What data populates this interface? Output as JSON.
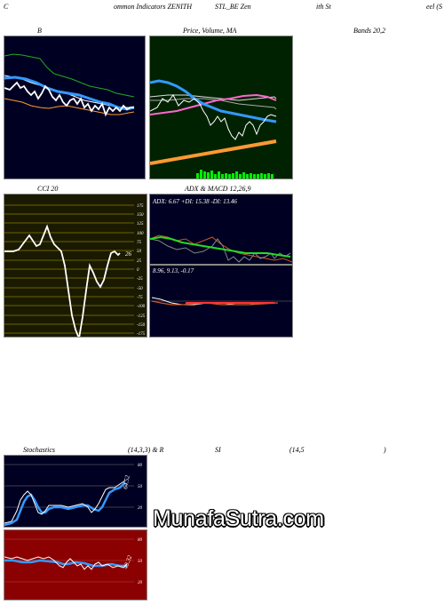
{
  "header": {
    "c": "C",
    "common": "ommon  Indicators ZENITH",
    "sym": "STL_BE  Zen",
    "ith": "ith St",
    "eel": "eel (S"
  },
  "row1": {
    "b_title": "B",
    "price_title": "Price,  Volume,  MA",
    "bands_title": "Bands 20,2"
  },
  "row2": {
    "cci_title": "CCI 20",
    "adx_title": "ADX  & MACD 12,26,9",
    "adx_values": "ADX: 6.67  +DI: 15.38  -DI: 13.46",
    "macd_values": "8.96,  9.13,  -0.17",
    "cci_value": "26",
    "cci_ticks": [
      "175",
      "150",
      "125",
      "100",
      "75",
      "50",
      "25",
      "0",
      "-25",
      "-50",
      "-75",
      "-100",
      "-125",
      "-150",
      "-175"
    ]
  },
  "row3": {
    "stoch_title": "Stochastics",
    "stoch_params": "(14,3,3) & R",
    "rsi_title": "SI",
    "rsi_params": "(14,5",
    "rsi_close": ")",
    "stoch_ticks": [
      "80",
      "50",
      "20"
    ],
    "stoch_value": "64.52",
    "rsi_ticks": [
      "80",
      "50",
      "20"
    ],
    "rsi_value": "48.32"
  },
  "watermark": "MunafaSutra.com",
  "colors": {
    "dark_navy": "#000022",
    "dark_green": "#002200",
    "dark_olive": "#1a1a00",
    "dark_red": "#8b0000",
    "accent_blue": "#3399ff",
    "accent_green": "#33cc33",
    "accent_orange": "#ff9933"
  }
}
